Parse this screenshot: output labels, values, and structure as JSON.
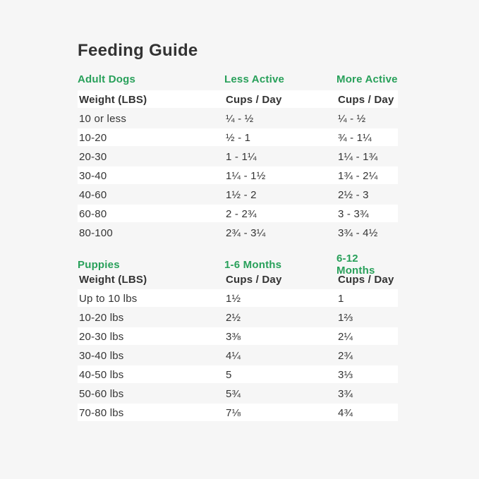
{
  "title": "Feeding Guide",
  "colors": {
    "background": "#f6f6f6",
    "row_highlight": "#ffffff",
    "accent_green": "#28a05a",
    "text": "#343434"
  },
  "chart_data": [
    {
      "type": "table",
      "section": "Adult Dogs",
      "col_headers": [
        "Less Active",
        "More Active"
      ],
      "subheader": [
        "Weight (LBS)",
        "Cups / Day",
        "Cups / Day"
      ],
      "rows": [
        [
          "10 or less",
          "¼ - ½",
          "¼ - ½"
        ],
        [
          "10-20",
          "½ - 1",
          "¾ - 1¼"
        ],
        [
          "20-30",
          "1 - 1¼",
          "1¼ - 1¾"
        ],
        [
          "30-40",
          "1¼ - 1½",
          "1¾ - 2¼"
        ],
        [
          "40-60",
          "1½ - 2",
          "2½ - 3"
        ],
        [
          "60-80",
          "2 - 2¾",
          "3 - 3¾"
        ],
        [
          "80-100",
          "2¾ - 3¼",
          "3¾ - 4½"
        ]
      ]
    },
    {
      "type": "table",
      "section": "Puppies",
      "col_headers": [
        "1-6 Months",
        "6-12 Months"
      ],
      "subheader": [
        "Weight (LBS)",
        "Cups / Day",
        "Cups / Day"
      ],
      "rows": [
        [
          "Up to 10 lbs",
          "1½",
          "1"
        ],
        [
          "10-20 lbs",
          "2½",
          "1⅔"
        ],
        [
          "20-30 lbs",
          "3⅜",
          "2¼"
        ],
        [
          "30-40 lbs",
          "4¼",
          "2¾"
        ],
        [
          "40-50 lbs",
          "5",
          "3⅓"
        ],
        [
          "50-60 lbs",
          "5¾",
          "3¾"
        ],
        [
          "70-80 lbs",
          "7⅛",
          "4¾"
        ]
      ]
    }
  ]
}
